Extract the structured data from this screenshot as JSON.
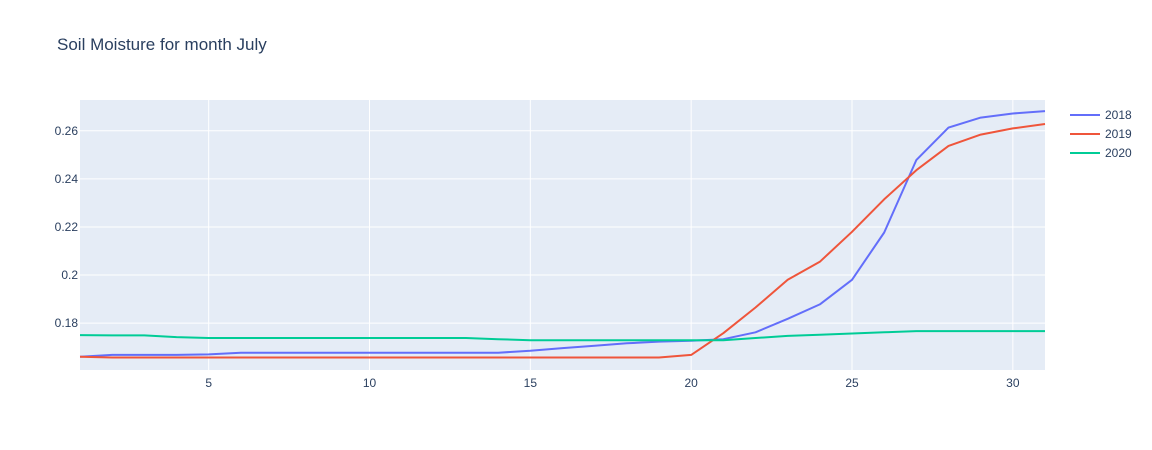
{
  "chart_data": {
    "type": "line",
    "title": "Soil Moisture for month July",
    "xlabel": "",
    "ylabel": "",
    "x": [
      1,
      2,
      3,
      4,
      5,
      6,
      7,
      8,
      9,
      10,
      11,
      12,
      13,
      14,
      15,
      16,
      17,
      18,
      19,
      20,
      21,
      22,
      23,
      24,
      25,
      26,
      27,
      28,
      29,
      30,
      31
    ],
    "xlim": [
      1,
      31
    ],
    "ylim": [
      0.1605,
      0.2728
    ],
    "x_ticks": [
      5,
      10,
      15,
      20,
      25,
      30
    ],
    "y_ticks": [
      0.18,
      0.2,
      0.22,
      0.24,
      0.26
    ],
    "y_tick_labels": [
      "0.18",
      "0.2",
      "0.22",
      "0.24",
      "0.26"
    ],
    "grid": true,
    "legend_position": "top-right",
    "series": [
      {
        "name": "2018",
        "color": "#636efa",
        "values": [
          0.166,
          0.1668,
          0.1668,
          0.1668,
          0.167,
          0.1677,
          0.1677,
          0.1677,
          0.1677,
          0.1677,
          0.1677,
          0.1677,
          0.1677,
          0.1677,
          0.1685,
          0.1696,
          0.1706,
          0.1716,
          0.1723,
          0.1727,
          0.1733,
          0.1762,
          0.1818,
          0.1878,
          0.198,
          0.2177,
          0.2478,
          0.2613,
          0.2655,
          0.2672,
          0.2682
        ]
      },
      {
        "name": "2019",
        "color": "#ef553b",
        "values": [
          0.166,
          0.1657,
          0.1657,
          0.1657,
          0.1657,
          0.1657,
          0.1657,
          0.1657,
          0.1657,
          0.1657,
          0.1657,
          0.1657,
          0.1657,
          0.1657,
          0.1657,
          0.1657,
          0.1657,
          0.1657,
          0.1657,
          0.1668,
          0.1758,
          0.1865,
          0.198,
          0.2055,
          0.218,
          0.2315,
          0.2436,
          0.2537,
          0.2584,
          0.261,
          0.2628
        ]
      },
      {
        "name": "2020",
        "color": "#00cc96",
        "values": [
          0.175,
          0.1749,
          0.1749,
          0.1742,
          0.1738,
          0.1738,
          0.1738,
          0.1738,
          0.1738,
          0.1738,
          0.1738,
          0.1738,
          0.1738,
          0.1733,
          0.1729,
          0.1729,
          0.1729,
          0.1729,
          0.1729,
          0.1729,
          0.1729,
          0.1738,
          0.1747,
          0.1752,
          0.1757,
          0.1762,
          0.1767,
          0.1767,
          0.1767,
          0.1767,
          0.1767
        ]
      }
    ],
    "colors": {
      "plot_bg": "#e5ecf6",
      "grid": "#ffffff",
      "text": "#2a3f5f"
    }
  }
}
